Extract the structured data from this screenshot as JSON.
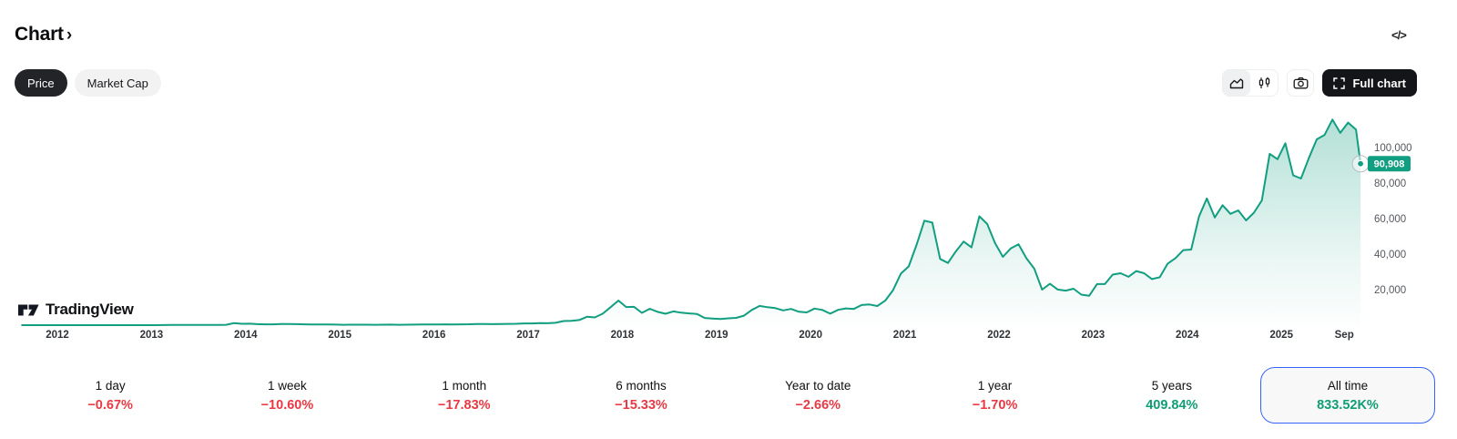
{
  "header": {
    "title": "Chart",
    "chevron": "›",
    "embed_icon_glyph": "</>"
  },
  "toolbar": {
    "price_label": "Price",
    "market_cap_label": "Market Cap",
    "full_chart_label": "Full chart"
  },
  "watermark": {
    "label": "TradingView"
  },
  "colors": {
    "line": "#129e80",
    "badge": "#129e80",
    "positive": "#0f9e73",
    "negative": "#ea3943",
    "selected_border": "#3861fb"
  },
  "chart_data": {
    "type": "area",
    "title": "",
    "xlabel": "",
    "ylabel": "",
    "grid": false,
    "legend": "none",
    "ylim": [
      0,
      122000
    ],
    "x_domain_years": [
      2011.625,
      2025.84
    ],
    "x_start": 2011.625,
    "x_step": 0.0833333,
    "x_end": 2025.84,
    "last_value": 90908,
    "last_value_label": "90,908",
    "y_ticks": [
      {
        "value": 20000,
        "label": "20,000"
      },
      {
        "value": 40000,
        "label": "40,000"
      },
      {
        "value": 60000,
        "label": "60,000"
      },
      {
        "value": 80000,
        "label": "80,000"
      },
      {
        "value": 100000,
        "label": "100,000"
      }
    ],
    "x_ticks": [
      {
        "t": 2012,
        "label": "2012"
      },
      {
        "t": 2013,
        "label": "2013"
      },
      {
        "t": 2014,
        "label": "2014"
      },
      {
        "t": 2015,
        "label": "2015"
      },
      {
        "t": 2016,
        "label": "2016"
      },
      {
        "t": 2017,
        "label": "2017"
      },
      {
        "t": 2018,
        "label": "2018"
      },
      {
        "t": 2019,
        "label": "2019"
      },
      {
        "t": 2020,
        "label": "2020"
      },
      {
        "t": 2021,
        "label": "2021"
      },
      {
        "t": 2022,
        "label": "2022"
      },
      {
        "t": 2023,
        "label": "2023"
      },
      {
        "t": 2024,
        "label": "2024"
      },
      {
        "t": 2025,
        "label": "2025"
      },
      {
        "t": 2025.667,
        "label": "Sep"
      }
    ],
    "series": [
      {
        "name": "Price",
        "unit": "USD",
        "cadence": "monthly",
        "y": [
          8,
          5,
          3,
          3,
          5,
          6,
          5,
          5,
          5,
          5,
          7,
          9,
          10,
          12,
          11,
          12,
          13,
          20,
          33,
          93,
          139,
          128,
          97,
          106,
          141,
          141,
          204,
          1130,
          754,
          806,
          550,
          458,
          446,
          627,
          635,
          589,
          481,
          387,
          338,
          378,
          320,
          217,
          254,
          244,
          236,
          230,
          263,
          284,
          230,
          236,
          314,
          377,
          430,
          368,
          437,
          416,
          448,
          531,
          673,
          624,
          575,
          610,
          700,
          745,
          964,
          970,
          1180,
          1080,
          1350,
          2300,
          2480,
          2875,
          4700,
          4360,
          6470,
          10100,
          13850,
          10200,
          10300,
          6930,
          9240,
          7500,
          6400,
          7730,
          7030,
          6630,
          6320,
          4040,
          3740,
          3460,
          3850,
          4100,
          5320,
          8560,
          10800,
          10080,
          9600,
          8290,
          9150,
          7560,
          7190,
          9350,
          8550,
          6440,
          8620,
          9450,
          9140,
          11350,
          11650,
          10780,
          13800,
          19700,
          29000,
          33100,
          45200,
          58800,
          57750,
          37300,
          35040,
          41500,
          47100,
          43790,
          61300,
          57000,
          46200,
          38480,
          43190,
          45540,
          37650,
          31790,
          19985,
          23300,
          20050,
          19430,
          20490,
          17170,
          16550,
          23140,
          23130,
          28480,
          29250,
          27220,
          30480,
          29230,
          25930,
          26970,
          34660,
          37720,
          42270,
          42580,
          61200,
          71330,
          60640,
          67530,
          62680,
          64620,
          58970,
          63330,
          70220,
          96450,
          93430,
          102400,
          84350,
          82550,
          94210,
          104600,
          107130,
          115760,
          108240,
          114050,
          110100,
          90908
        ]
      }
    ]
  },
  "stats": {
    "items": [
      {
        "label": "1 day",
        "value": "−0.67%",
        "direction": "down",
        "selected": false
      },
      {
        "label": "1 week",
        "value": "−10.60%",
        "direction": "down",
        "selected": false
      },
      {
        "label": "1 month",
        "value": "−17.83%",
        "direction": "down",
        "selected": false
      },
      {
        "label": "6 months",
        "value": "−15.33%",
        "direction": "down",
        "selected": false
      },
      {
        "label": "Year to date",
        "value": "−2.66%",
        "direction": "down",
        "selected": false
      },
      {
        "label": "1 year",
        "value": "−1.70%",
        "direction": "down",
        "selected": false
      },
      {
        "label": "5 years",
        "value": "409.84%",
        "direction": "up",
        "selected": false
      },
      {
        "label": "All time",
        "value": "833.52K%",
        "direction": "up",
        "selected": true
      }
    ]
  }
}
